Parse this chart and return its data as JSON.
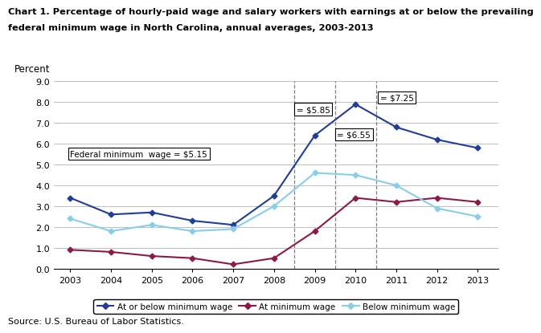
{
  "title_line1": "Chart 1. Percentage of hourly-paid wage and salary workers with earnings at or below the prevailing",
  "title_line2": "federal minimum wage in North Carolina, annual averages, 2003-2013",
  "ylabel": "Percent",
  "source": "Source: U.S. Bureau of Labor Statistics.",
  "years": [
    2003,
    2004,
    2005,
    2006,
    2007,
    2008,
    2009,
    2010,
    2011,
    2012,
    2013
  ],
  "at_or_below": [
    3.4,
    2.6,
    2.7,
    2.3,
    2.1,
    3.5,
    6.4,
    7.9,
    6.8,
    6.2,
    5.8
  ],
  "at_minimum": [
    0.9,
    0.8,
    0.6,
    0.5,
    0.2,
    0.5,
    1.8,
    3.4,
    3.2,
    3.4,
    3.2
  ],
  "below_minimum": [
    2.4,
    1.8,
    2.1,
    1.8,
    1.9,
    3.0,
    4.6,
    4.5,
    4.0,
    2.9,
    2.5
  ],
  "color_at_or_below": "#1F3D99",
  "color_at_minimum": "#8B1A4A",
  "color_below_minimum": "#87CEEB",
  "ylim": [
    0.0,
    9.0
  ],
  "yticks": [
    0.0,
    1.0,
    2.0,
    3.0,
    4.0,
    5.0,
    6.0,
    7.0,
    8.0,
    9.0
  ],
  "vlines": [
    2008.5,
    2009.5,
    2010.5
  ],
  "annotation_515": "Federal minimum  wage = $5.15",
  "annotation_585": "= $5.85",
  "annotation_655": "= $6.55",
  "annotation_725": "= $7.25"
}
